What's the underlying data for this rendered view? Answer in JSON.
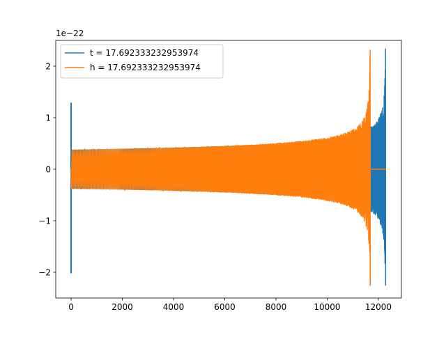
{
  "chart_data": {
    "type": "line",
    "title": "",
    "xlabel": "",
    "ylabel": "",
    "offset_label": "1e−22",
    "xlim": [
      -600,
      12900
    ],
    "ylim": [
      -2.5,
      2.5
    ],
    "x_ticks": [
      0,
      2000,
      4000,
      6000,
      8000,
      10000,
      12000
    ],
    "x_tick_labels": [
      "0",
      "2000",
      "4000",
      "6000",
      "8000",
      "10000",
      "12000"
    ],
    "y_ticks": [
      -2,
      -1,
      0,
      1,
      2
    ],
    "y_tick_labels": [
      "−2",
      "−1",
      "0",
      "1",
      "2"
    ],
    "grid": false,
    "legend_position": "top-left",
    "series": [
      {
        "name": "t = 17.692333232953974",
        "color": "#1f77b4",
        "x_range": [
          0,
          12300
        ],
        "spike_at_start": {
          "x": 0,
          "min": -2.02,
          "max": 1.29
        },
        "chirp_envelope": {
          "x_start": 0,
          "x_merger": 12280,
          "base_amplitude": 0.38,
          "peak_max": 2.34,
          "peak_min": -2.26
        },
        "offset_from_h": 600
      },
      {
        "name": "h = 17.692333232953974",
        "color": "#ff7f0e",
        "x_range": [
          0,
          12300
        ],
        "chirp_envelope": {
          "x_start": 0,
          "x_merger": 11680,
          "base_amplitude": 0.38,
          "peak_max": 2.32,
          "peak_min": -2.26
        },
        "flat_after": {
          "x_start": 11700,
          "x_end": 12300,
          "value": 0
        }
      }
    ]
  }
}
